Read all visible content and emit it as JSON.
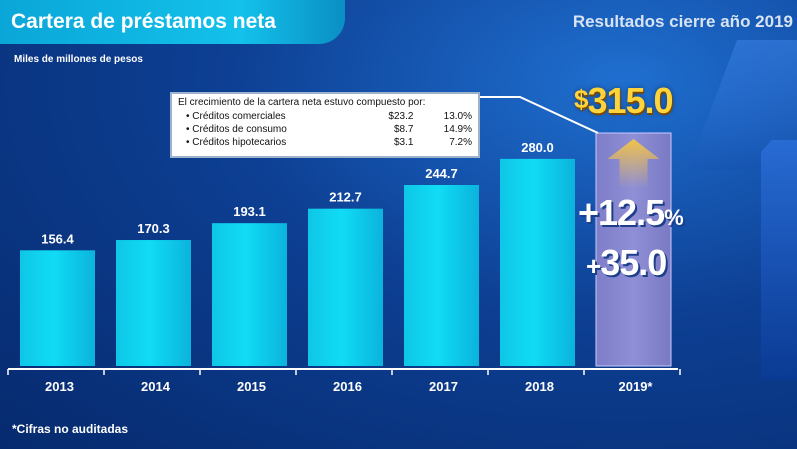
{
  "header": {
    "title": "Cartera de préstamos neta",
    "right_title": "Resultados cierre año 2019"
  },
  "units_label": "Miles de millones de pesos",
  "callout": {
    "heading": "El crecimiento de la cartera neta estuvo compuesto por:",
    "rows": [
      {
        "name": "• Créditos comerciales",
        "amount": "$23.2",
        "pct": "13.0%"
      },
      {
        "name": "• Créditos de consumo",
        "amount": "$8.7",
        "pct": "14.9%"
      },
      {
        "name": "• Créditos hipotecarios",
        "amount": "$3.1",
        "pct": "7.2%"
      }
    ]
  },
  "highlight": {
    "currency": "$",
    "total": "315.0",
    "growth_pct": "+12.5",
    "pct_sign": "%",
    "growth_abs_sign": "+",
    "growth_abs": "35.0"
  },
  "footnote": "*Cifras no auditadas",
  "colors": {
    "bar": "#10dcf5",
    "bar_highlight": "#8f8fd6",
    "arrow": "#f2c34a",
    "callout_border": "#9fb2cc"
  },
  "chart_data": {
    "type": "bar",
    "categories": [
      "2013",
      "2014",
      "2015",
      "2016",
      "2017",
      "2018",
      "2019*"
    ],
    "values": [
      156.4,
      170.3,
      193.1,
      212.7,
      244.7,
      280.0,
      315.0
    ],
    "data_labels": [
      "156.4",
      "170.3",
      "193.1",
      "212.7",
      "244.7",
      "280.0",
      ""
    ],
    "highlight_index": 6,
    "ylim": [
      0,
      315.0
    ],
    "grid": false,
    "legend": "none"
  }
}
